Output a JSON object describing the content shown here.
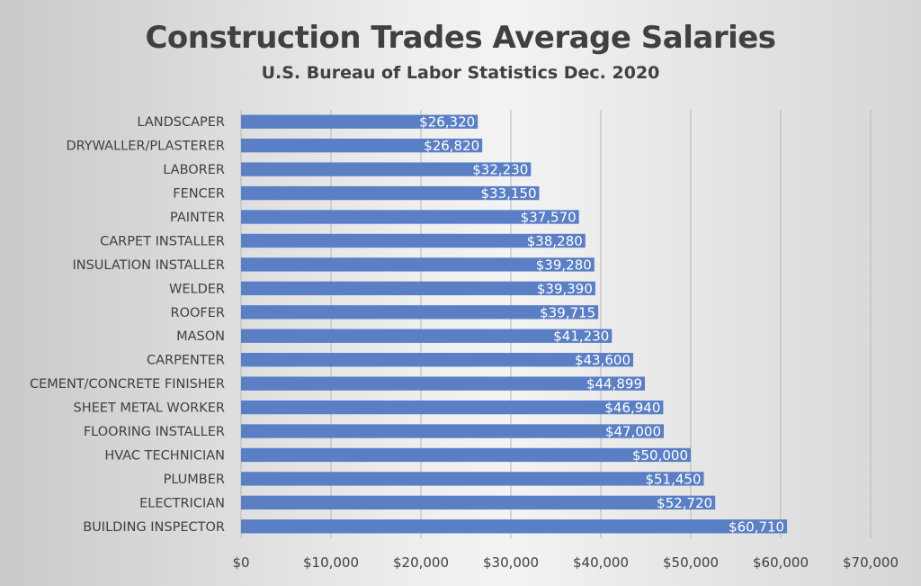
{
  "chart_data": {
    "type": "bar",
    "orientation": "horizontal",
    "title": "Construction Trades Average Salaries",
    "subtitle": "U.S. Bureau of Labor Statistics Dec. 2020",
    "xlabel": "",
    "ylabel": "",
    "xlim": [
      0,
      70000
    ],
    "x_ticks": [
      0,
      10000,
      20000,
      30000,
      40000,
      50000,
      60000,
      70000
    ],
    "x_tick_labels": [
      "$0",
      "$10,000",
      "$20,000",
      "$30,000",
      "$40,000",
      "$50,000",
      "$60,000",
      "$70,000"
    ],
    "grid": true,
    "bar_color": "#5b7fc4",
    "categories": [
      "LANDSCAPER",
      "DRYWALLER/PLASTERER",
      "LABORER",
      "FENCER",
      "PAINTER",
      "CARPET INSTALLER",
      "INSULATION INSTALLER",
      "WELDER",
      "ROOFER",
      "MASON",
      "CARPENTER",
      "CEMENT/CONCRETE FINISHER",
      "SHEET METAL WORKER",
      "FLOORING INSTALLER",
      "HVAC TECHNICIAN",
      "PLUMBER",
      "ELECTRICIAN",
      "BUILDING INSPECTOR"
    ],
    "values": [
      26320,
      26820,
      32230,
      33150,
      37570,
      38280,
      39280,
      39390,
      39715,
      41230,
      43600,
      44899,
      46940,
      47000,
      50000,
      51450,
      52720,
      60710
    ],
    "data_labels": [
      "$26,320",
      "$26,820",
      "$32,230",
      "$33,150",
      "$37,570",
      "$38,280",
      "$39,280",
      "$39,390",
      "$39,715",
      "$41,230",
      "$43,600",
      "$44,899",
      "$46,940",
      "$47,000",
      "$50,000",
      "$51,450",
      "$52,720",
      "$60,710"
    ]
  }
}
